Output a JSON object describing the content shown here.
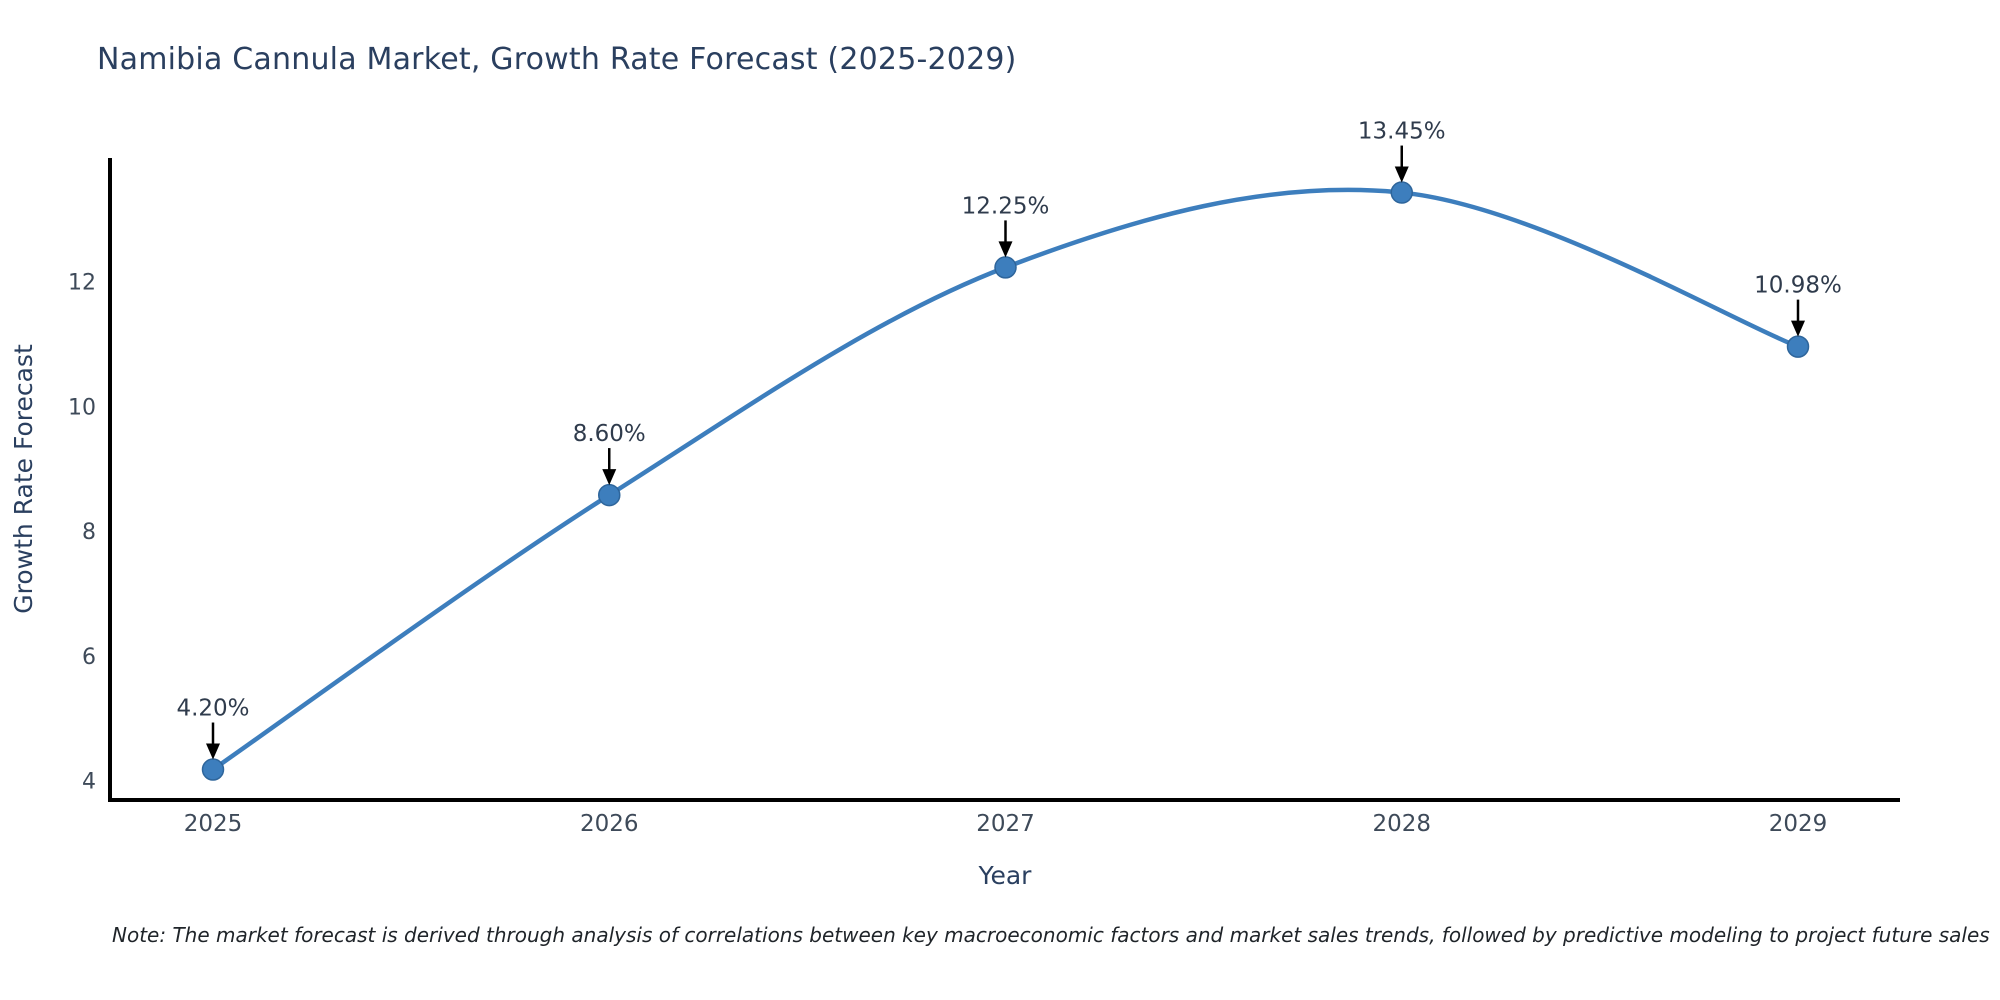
{
  "title": "Namibia Cannula Market, Growth Rate Forecast (2025-2029)",
  "note": "Note: The market forecast is derived through analysis of correlations between key macroeconomic factors and market sales trends, followed by predictive modeling to project future sales",
  "chart_data": {
    "type": "line",
    "line_shape": "spline",
    "title": "Namibia Cannula Market, Growth Rate Forecast (2025-2029)",
    "xlabel": "Year",
    "ylabel": "Growth Rate Forecast",
    "categories": [
      "2025",
      "2026",
      "2027",
      "2028",
      "2029"
    ],
    "values": [
      4.2,
      8.6,
      12.25,
      13.45,
      10.98
    ],
    "point_labels": [
      "4.20%",
      "8.60%",
      "12.25%",
      "13.45%",
      "10.98%"
    ],
    "yticks": [
      4,
      6,
      8,
      10,
      12
    ],
    "ylim": [
      3.71,
      13.97
    ],
    "grid": false,
    "legend_position": "none",
    "colors": {
      "line": "#3d7ebd",
      "marker": "#3d7ebd",
      "marker_edge": "#2e659b",
      "axis": "#000000",
      "title_text": "#2a3f5f",
      "axis_title_text": "#2a3f5f",
      "tick_text": "#3e4a59",
      "annotation_text": "#2f3b4c",
      "annotation_arrow": "#000000",
      "note_text": "#1f2429",
      "background": "#ffffff"
    }
  }
}
